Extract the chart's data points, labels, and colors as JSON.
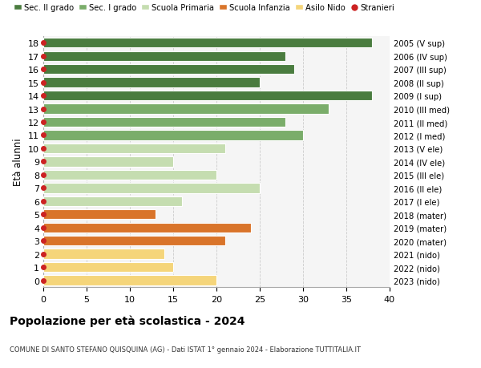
{
  "ages": [
    18,
    17,
    16,
    15,
    14,
    13,
    12,
    11,
    10,
    9,
    8,
    7,
    6,
    5,
    4,
    3,
    2,
    1,
    0
  ],
  "years": [
    "2005 (V sup)",
    "2006 (IV sup)",
    "2007 (III sup)",
    "2008 (II sup)",
    "2009 (I sup)",
    "2010 (III med)",
    "2011 (II med)",
    "2012 (I med)",
    "2013 (V ele)",
    "2014 (IV ele)",
    "2015 (III ele)",
    "2016 (II ele)",
    "2017 (I ele)",
    "2018 (mater)",
    "2019 (mater)",
    "2020 (mater)",
    "2021 (nido)",
    "2022 (nido)",
    "2023 (nido)"
  ],
  "values": [
    38,
    28,
    29,
    25,
    38,
    33,
    28,
    30,
    21,
    15,
    20,
    25,
    16,
    13,
    24,
    21,
    14,
    15,
    20
  ],
  "colors": [
    "#4a7c3f",
    "#4a7c3f",
    "#4a7c3f",
    "#4a7c3f",
    "#4a7c3f",
    "#7aad6a",
    "#7aad6a",
    "#7aad6a",
    "#c5ddb0",
    "#c5ddb0",
    "#c5ddb0",
    "#c5ddb0",
    "#c5ddb0",
    "#d9742a",
    "#d9742a",
    "#d9742a",
    "#f5d57a",
    "#f5d57a",
    "#f5d57a"
  ],
  "legend_labels": [
    "Sec. II grado",
    "Sec. I grado",
    "Scuola Primaria",
    "Scuola Infanzia",
    "Asilo Nido",
    "Stranieri"
  ],
  "legend_colors": [
    "#4a7c3f",
    "#7aad6a",
    "#c5ddb0",
    "#d9742a",
    "#f5d57a",
    "#cc2222"
  ],
  "title": "Popolazione per età scolastica - 2024",
  "subtitle": "COMUNE DI SANTO STEFANO QUISQUINA (AG) - Dati ISTAT 1° gennaio 2024 - Elaborazione TUTTITALIA.IT",
  "ylabel_left": "Età alunni",
  "xlim": [
    0,
    40
  ],
  "xticks": [
    0,
    5,
    10,
    15,
    20,
    25,
    30,
    35,
    40
  ],
  "bg_color": "#ffffff",
  "bar_bg_color": "#f5f5f5",
  "grid_color": "#cccccc"
}
